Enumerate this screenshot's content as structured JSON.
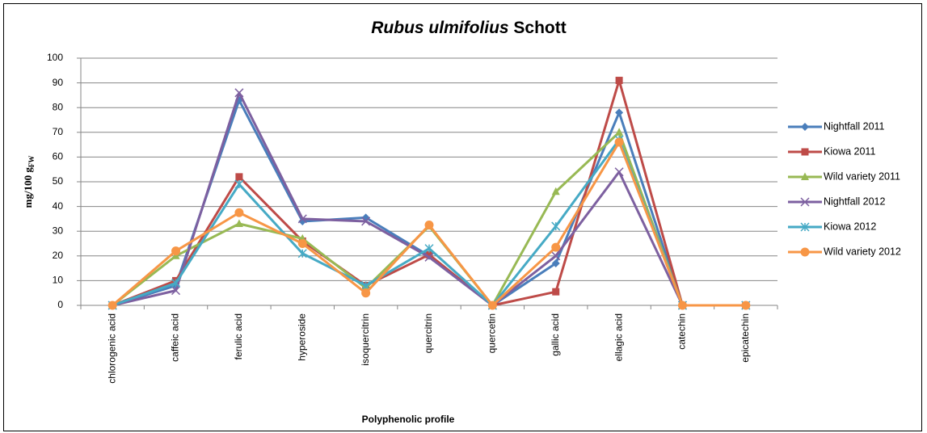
{
  "chart_data": {
    "type": "line",
    "title": "Rubus ulmifolius Schott",
    "title_italic": "Rubus ulmifolius",
    "ylabel": "mg/100 g",
    "ylabel_subscript": "FW",
    "xlabel": "Polyphenolic profile",
    "categories": [
      "chlorogenic acid",
      "caffeic acid",
      "ferulic acid",
      "hyperoside",
      "isoquercitrin",
      "quercitrin",
      "quercetin",
      "gallic acid",
      "ellagic acid",
      "catechin",
      "epicatechin"
    ],
    "series": [
      {
        "name": "Nightfall 2011",
        "color": "#4a7ebb",
        "marker": "diamond",
        "values": [
          0,
          8,
          83,
          34,
          35.5,
          20,
          0,
          17,
          78,
          0,
          0
        ]
      },
      {
        "name": "Kiowa 2011",
        "color": "#be4b48",
        "marker": "square",
        "values": [
          0,
          10,
          52,
          26,
          8,
          20.5,
          0,
          5.5,
          91,
          0,
          0
        ]
      },
      {
        "name": "Wild variety 2011",
        "color": "#98b954",
        "marker": "triangle",
        "values": [
          0,
          20,
          33,
          27,
          7,
          32,
          0,
          46,
          70,
          0,
          0
        ]
      },
      {
        "name": "Nightfall 2012",
        "color": "#7d60a0",
        "marker": "x",
        "values": [
          0,
          6,
          86,
          35,
          34,
          19.5,
          0,
          20,
          54,
          0,
          0
        ]
      },
      {
        "name": "Kiowa 2012",
        "color": "#46aac5",
        "marker": "star",
        "values": [
          0,
          9,
          49,
          21,
          8,
          23,
          0,
          32,
          67,
          0,
          0
        ]
      },
      {
        "name": "Wild variety 2012",
        "color": "#f79646",
        "marker": "circle",
        "values": [
          0,
          22,
          37.5,
          25,
          5,
          32.5,
          0,
          23.5,
          66,
          0,
          0
        ]
      }
    ],
    "ylim": [
      0,
      100
    ],
    "yticks": [
      0,
      10,
      20,
      30,
      40,
      50,
      60,
      70,
      80,
      90,
      100
    ],
    "grid": true,
    "legend": "right"
  }
}
